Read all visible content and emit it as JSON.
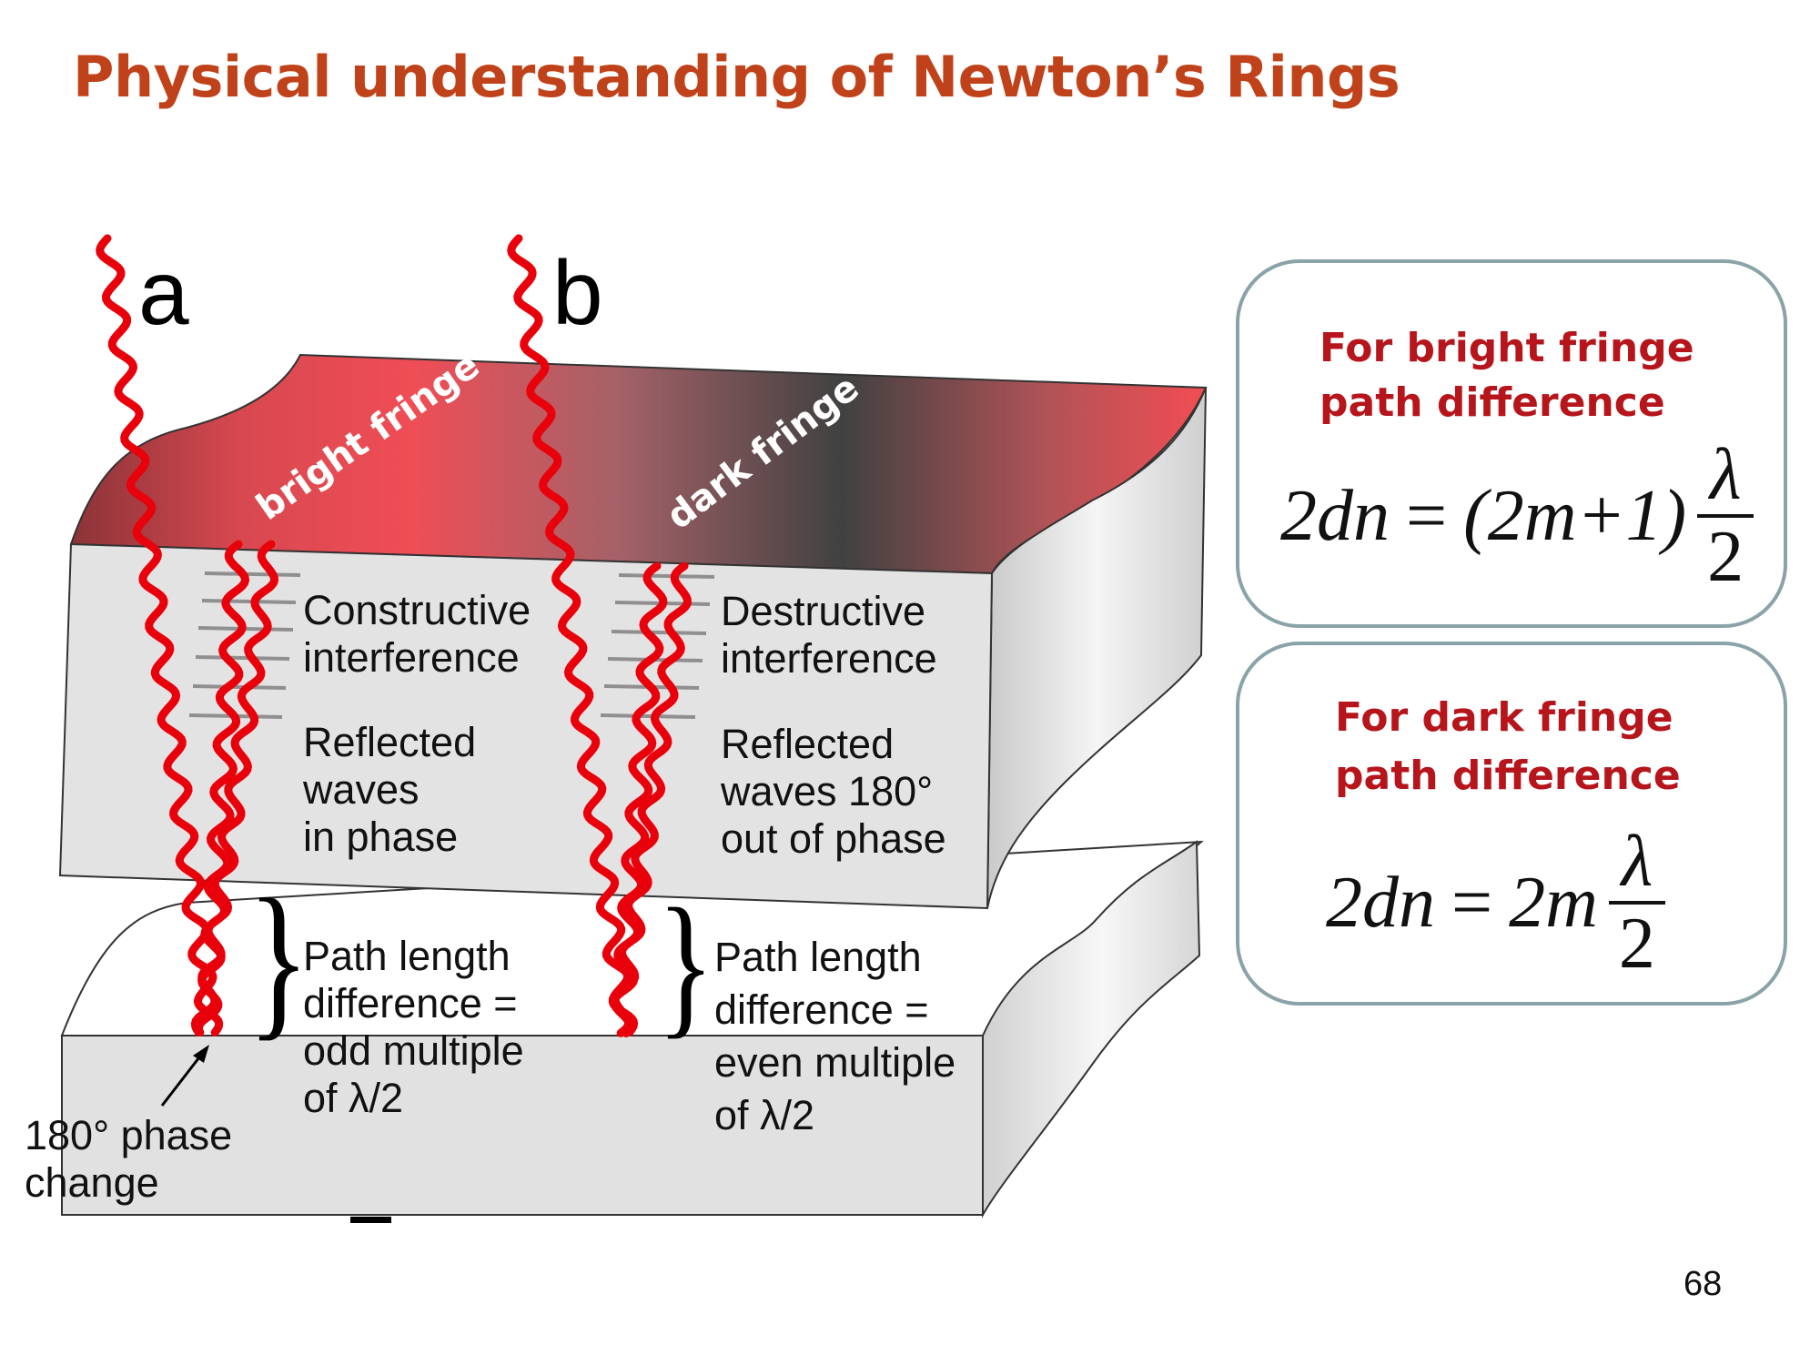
{
  "title": "Physical understanding of Newton’s Rings",
  "beams": {
    "a": "a",
    "b": "b"
  },
  "fringes": {
    "bright": "bright fringe",
    "dark": "dark fringe"
  },
  "left_column": {
    "interference": [
      "Constructive",
      "interference"
    ],
    "reflected": [
      "Reflected",
      "waves",
      "in phase"
    ],
    "path": [
      "Path length",
      "difference =",
      "odd multiple",
      "of λ/2"
    ],
    "phase_change": [
      "180° phase",
      "change"
    ]
  },
  "right_column": {
    "interference": [
      "Destructive",
      "interference"
    ],
    "reflected": [
      "Reflected",
      "waves 180°",
      "out of phase"
    ],
    "path": [
      "Path length",
      "difference =",
      "even multiple",
      "of λ/2"
    ]
  },
  "bright_box": {
    "heading": [
      "For bright fringe",
      "path difference"
    ],
    "formula_lhs": "2dn",
    "formula_rhs": "(2m+1)",
    "numerator": "λ",
    "denominator": "2"
  },
  "dark_box": {
    "heading": [
      "For dark fringe",
      "path difference"
    ],
    "formula_lhs": "2dn",
    "formula_rhs": "2m",
    "numerator": "λ",
    "denominator": "2"
  },
  "page_number": "68",
  "colors": {
    "title": "#c0421a",
    "heading": "#b5151b",
    "wave": "#e8000b",
    "box_border": "#8aa3a9"
  }
}
